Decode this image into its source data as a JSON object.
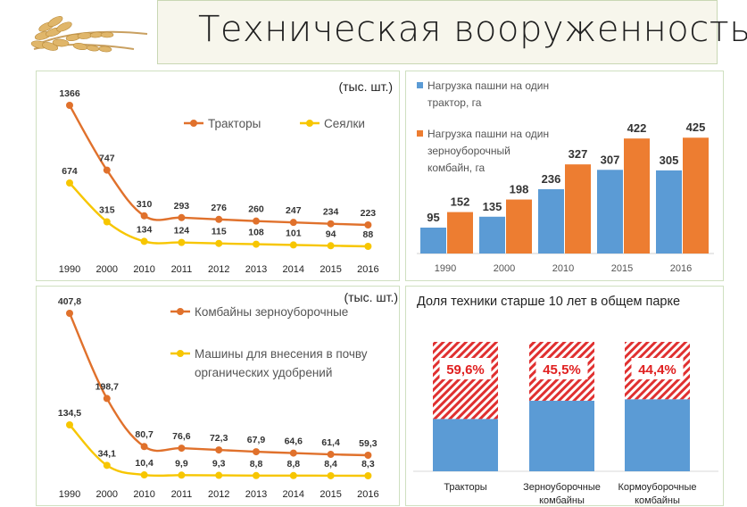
{
  "page": {
    "title": "Техническая вооруженность"
  },
  "chart_data": [
    {
      "id": "chart1",
      "type": "line",
      "unit_label": "(тыс. шт.)",
      "categories": [
        "1990",
        "2000",
        "2010",
        "2011",
        "2012",
        "2013",
        "2014",
        "2015",
        "2016"
      ],
      "series": [
        {
          "name": "Тракторы",
          "color": "#e0712c",
          "values": [
            1366,
            747,
            310,
            293,
            276,
            260,
            247,
            234,
            223
          ],
          "labels": [
            "1366",
            "747",
            "310",
            "293",
            "276",
            "260",
            "247",
            "234",
            "223"
          ]
        },
        {
          "name": "Сеялки",
          "color": "#f7c600",
          "values": [
            674,
            315,
            134,
            124,
            115,
            108,
            101,
            94,
            88
          ],
          "labels": [
            "674",
            "315",
            "134",
            "124",
            "115",
            "108",
            "101",
            "94",
            "88"
          ]
        }
      ]
    },
    {
      "id": "chart2",
      "type": "bar",
      "categories": [
        "1990",
        "2000",
        "2010",
        "2015",
        "2016"
      ],
      "series": [
        {
          "name": "Нагрузка пашни на один трактор, га",
          "legend_lines": [
            "Нагрузка пашни на один",
            "трактор, га"
          ],
          "color": "#5b9bd5",
          "values": [
            95,
            135,
            236,
            307,
            305
          ]
        },
        {
          "name": "Нагрузка пашни на один зерноуборочный комбайн, га",
          "legend_lines": [
            "Нагрузка пашни на один",
            "зерноуборочный",
            "комбайн, га"
          ],
          "color": "#ed7d31",
          "values": [
            152,
            198,
            327,
            422,
            425
          ]
        }
      ]
    },
    {
      "id": "chart3",
      "type": "line",
      "unit_label": "(тыс. шт.)",
      "categories": [
        "1990",
        "2000",
        "2010",
        "2011",
        "2012",
        "2013",
        "2014",
        "2015",
        "2016"
      ],
      "series": [
        {
          "name": "Комбайны зерноуборочные",
          "legend_lines": [
            "Комбайны зерноуборочные"
          ],
          "color": "#e0712c",
          "values": [
            407.8,
            198.7,
            80.7,
            76.6,
            72.3,
            67.9,
            64.6,
            61.4,
            59.3
          ],
          "labels": [
            "407,8",
            "198,7",
            "80,7",
            "76,6",
            "72,3",
            "67,9",
            "64,6",
            "61,4",
            "59,3"
          ]
        },
        {
          "name": "Машины для внесения в почву органических удобрений",
          "legend_lines": [
            "Машины для внесения в почву",
            "органических удобрений"
          ],
          "color": "#f7c600",
          "values": [
            134.5,
            34.1,
            10.4,
            9.9,
            9.3,
            8.8,
            8.8,
            8.4,
            8.3
          ],
          "labels": [
            "134,5",
            "34,1",
            "10,4",
            "9,9",
            "9,3",
            "8,8",
            "8,8",
            "8,4",
            "8,3"
          ]
        }
      ]
    },
    {
      "id": "chart4",
      "type": "bar",
      "title": "Доля техники старше 10 лет в общем парке",
      "categories": [
        [
          "Тракторы"
        ],
        [
          "Зерноуборочные",
          "комбайны"
        ],
        [
          "Кормоуборочные",
          "комбайны"
        ]
      ],
      "values": [
        59.6,
        45.5,
        44.4
      ],
      "labels": [
        "59,6%",
        "45,5%",
        "44,4%"
      ],
      "old_color": "#e03030",
      "new_color": "#5b9bd5"
    }
  ]
}
